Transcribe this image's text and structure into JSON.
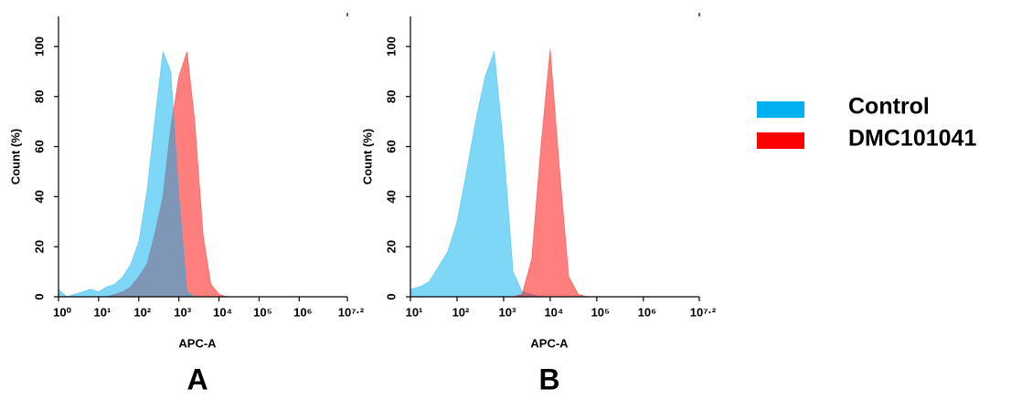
{
  "chart_data": [
    {
      "type": "area",
      "panel": "A",
      "xlabel": "APC-A",
      "ylabel": "Count  (%)",
      "xscale": "log",
      "xlim": [
        1,
        15848932
      ],
      "xticks": [
        {
          "value": 1,
          "label": "10⁰"
        },
        {
          "value": 10,
          "label": "10¹"
        },
        {
          "value": 100,
          "label": "10²"
        },
        {
          "value": 1000,
          "label": "10³"
        },
        {
          "value": 10000,
          "label": "10⁴"
        },
        {
          "value": 100000,
          "label": "10⁵"
        },
        {
          "value": 1000000,
          "label": "10⁶"
        },
        {
          "value": 15848932,
          "label": "10⁷·²"
        }
      ],
      "ylim": [
        0,
        112
      ],
      "yticks": [
        0,
        20,
        40,
        60,
        80,
        100
      ],
      "x": [
        1,
        1.6,
        2.5,
        4,
        6.3,
        10,
        16,
        25,
        40,
        63,
        100,
        160,
        250,
        400,
        630,
        1000,
        1600,
        2500,
        4000,
        6300,
        10000,
        16000,
        25000
      ],
      "series": [
        {
          "name": "DMC101041",
          "color": "#ff0000",
          "values": [
            0,
            0,
            0,
            0,
            0,
            0,
            0,
            1,
            2,
            4,
            8,
            13,
            25,
            40,
            68,
            88,
            98,
            70,
            25,
            5,
            1,
            0,
            0
          ]
        },
        {
          "name": "Control",
          "color": "#00b0f0",
          "values": [
            3,
            0,
            1,
            2,
            3,
            2,
            4,
            5,
            8,
            13,
            22,
            42,
            70,
            98,
            90,
            40,
            2,
            0,
            0,
            0,
            0,
            0,
            0
          ]
        }
      ]
    },
    {
      "type": "area",
      "panel": "B",
      "xlabel": "APC-A",
      "ylabel": "Count  (%)",
      "xscale": "log",
      "xlim": [
        10,
        15848932
      ],
      "xticks": [
        {
          "value": 10,
          "label": "10¹"
        },
        {
          "value": 100,
          "label": "10²"
        },
        {
          "value": 1000,
          "label": "10³"
        },
        {
          "value": 10000,
          "label": "10⁴"
        },
        {
          "value": 100000,
          "label": "10⁵"
        },
        {
          "value": 1000000,
          "label": "10⁶"
        },
        {
          "value": 15848932,
          "label": "10⁷·²"
        }
      ],
      "ylim": [
        0,
        112
      ],
      "yticks": [
        0,
        20,
        40,
        60,
        80,
        100
      ],
      "x": [
        10,
        16,
        25,
        40,
        63,
        100,
        160,
        250,
        400,
        630,
        1000,
        1600,
        2500,
        4000,
        6300,
        10000,
        16000,
        25000,
        40000,
        63000,
        100000,
        160000
      ],
      "series": [
        {
          "name": "Control",
          "color": "#00b0f0",
          "values": [
            3,
            4,
            6,
            12,
            18,
            30,
            50,
            70,
            88,
            98,
            60,
            10,
            2,
            1,
            0,
            0,
            0,
            0,
            0,
            0,
            0,
            0
          ]
        },
        {
          "name": "DMC101041",
          "color": "#ff0000",
          "values": [
            0,
            0,
            0,
            0,
            0,
            0,
            0,
            0,
            0,
            0,
            0,
            0,
            1,
            15,
            60,
            99,
            50,
            8,
            1,
            0,
            0,
            0
          ]
        }
      ]
    }
  ]
}
